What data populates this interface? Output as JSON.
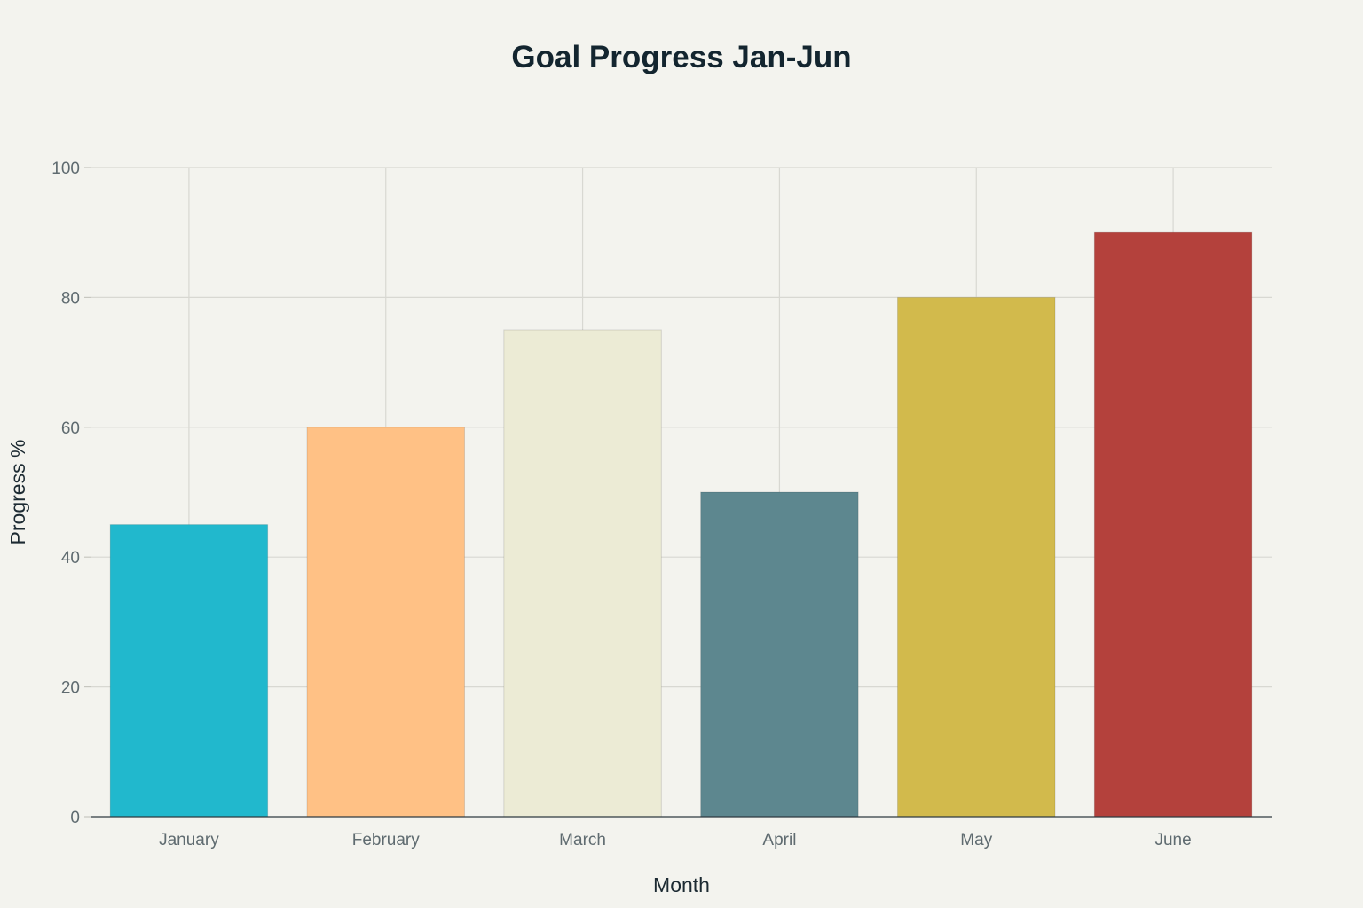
{
  "chart_data": {
    "type": "bar",
    "title": "Goal Progress Jan-Jun",
    "xlabel": "Month",
    "ylabel": "Progress %",
    "categories": [
      "January",
      "February",
      "March",
      "April",
      "May",
      "June"
    ],
    "values": [
      45,
      60,
      75,
      50,
      80,
      90
    ],
    "colors": [
      "#21b8cd",
      "#ffc185",
      "#ecebd5",
      "#5d878f",
      "#d2ba4c",
      "#b4413c"
    ],
    "ylim": [
      0,
      100
    ],
    "yticks": [
      0,
      20,
      40,
      60,
      80,
      100
    ],
    "grid": true,
    "legend": "none"
  }
}
